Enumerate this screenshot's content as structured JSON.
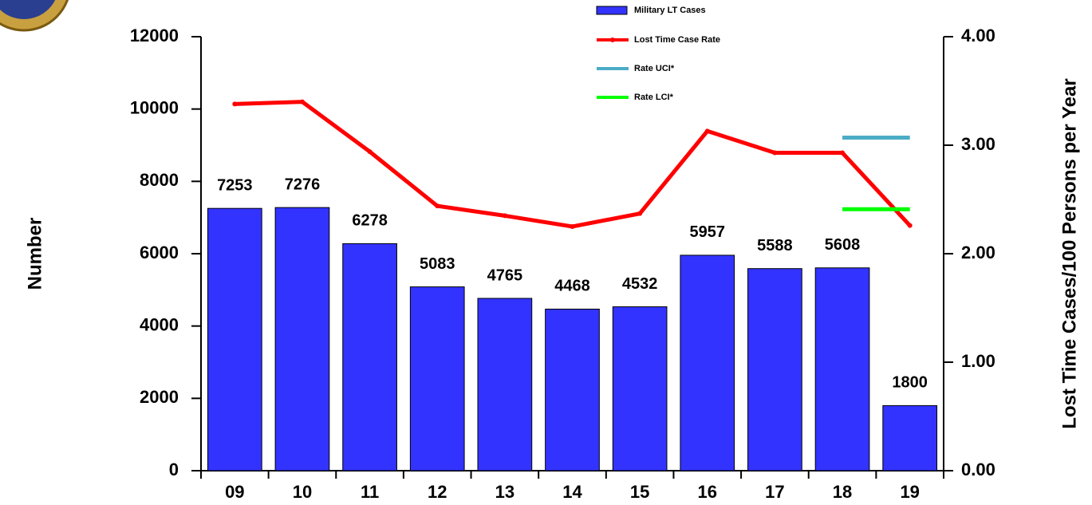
{
  "chart_data": {
    "type": "bar",
    "categories": [
      "09",
      "10",
      "11",
      "12",
      "13",
      "14",
      "15",
      "16",
      "17",
      "18",
      "19"
    ],
    "series": [
      {
        "name": "Military LT Cases",
        "type": "bar",
        "axis": "y",
        "color": "#3333ff",
        "values": [
          7253,
          7276,
          6278,
          5083,
          4765,
          4468,
          4532,
          5957,
          5588,
          5608,
          1800
        ]
      },
      {
        "name": "Lost Time Case Rate",
        "type": "line",
        "axis": "y2",
        "color": "#ff0000",
        "values": [
          3.38,
          3.4,
          2.94,
          2.44,
          2.35,
          2.25,
          2.37,
          3.13,
          2.93,
          2.93,
          2.26
        ]
      },
      {
        "name": "Rate UCI*",
        "type": "line",
        "axis": "y2",
        "color": "#4bacc6",
        "values": [
          null,
          null,
          null,
          null,
          null,
          null,
          null,
          null,
          null,
          3.07,
          3.07
        ]
      },
      {
        "name": "Rate LCI*",
        "type": "line",
        "axis": "y2",
        "color": "#00ff00",
        "values": [
          null,
          null,
          null,
          null,
          null,
          null,
          null,
          null,
          null,
          2.41,
          2.41
        ]
      }
    ],
    "ylabel": "Number",
    "y2label": "Lost Time Cases/100 Persons per Year",
    "ylim": [
      0,
      12000
    ],
    "yticks": [
      0,
      2000,
      4000,
      6000,
      8000,
      10000,
      12000
    ],
    "y2lim": [
      0,
      4
    ],
    "y2ticks": [
      {
        "value": 0,
        "label": "0.00"
      },
      {
        "value": 1,
        "label": "1.00"
      },
      {
        "value": 2,
        "label": "2.00"
      },
      {
        "value": 3,
        "label": "3.00"
      },
      {
        "value": 4,
        "label": "4.00"
      }
    ]
  }
}
